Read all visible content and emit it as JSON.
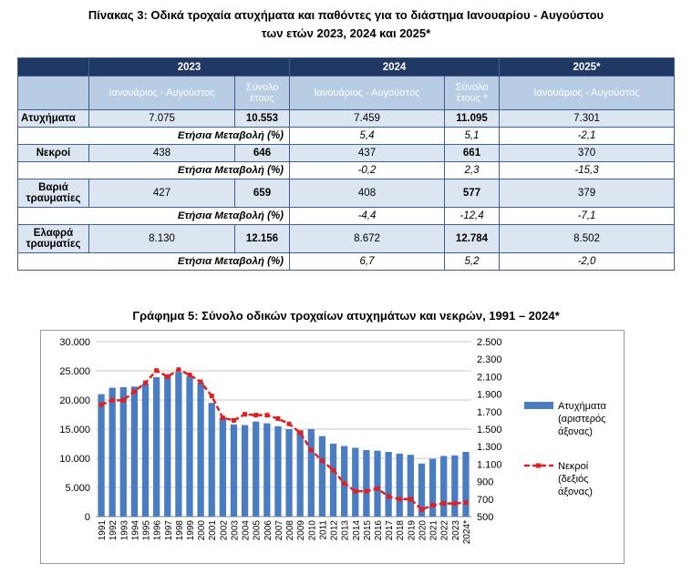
{
  "table_title_line1": "Πίνακας 3: Οδικά τροχαία ατυχήματα και παθόντες για το διάστημα Ιανουαρίου - Αυγούστου",
  "table_title_line2": "των ετών 2023, 2024 και 2025*",
  "table": {
    "years": [
      "2023",
      "2024",
      "2025*"
    ],
    "col_period": "Ιανουάριος -   Αυγούστος",
    "col_total_2023": "Σύνολο έτους",
    "col_total_2024": "Σύνολο έτους *",
    "col_period_2025": "Ιανουάριος -     Αυγούστος",
    "change_label": "Ετήσια Μεταβολή (%)",
    "rows": [
      {
        "label": "Ατυχήματα",
        "v2023": "7.075",
        "t2023": "10.553",
        "v2024": "7.459",
        "t2024": "11.095",
        "v2025": "7.301",
        "c2024": "5,4",
        "ct2024": "5,1",
        "c2025": "-2,1"
      },
      {
        "label": "Νεκροί",
        "v2023": "438",
        "t2023": "646",
        "v2024": "437",
        "t2024": "661",
        "v2025": "370",
        "c2024": "-0,2",
        "ct2024": "2,3",
        "c2025": "-15,3"
      },
      {
        "label": "Βαριά τραυματίες",
        "v2023": "427",
        "t2023": "659",
        "v2024": "408",
        "t2024": "577",
        "v2025": "379",
        "c2024": "-4,4",
        "ct2024": "-12,4",
        "c2025": "-7,1"
      },
      {
        "label": "Ελαφρά τραυματίες",
        "v2023": "8.130",
        "t2023": "12.156",
        "v2024": "8.672",
        "t2024": "12.784",
        "v2025": "8.502",
        "c2024": "6,7",
        "ct2024": "5,2",
        "c2025": "-2,0"
      }
    ]
  },
  "chart_title": "Γράφημα 5: Σύνολο οδικών τροχαίων ατυχημάτων και νεκρών, 1991 – 2024*",
  "chart_data": {
    "type": "bar",
    "categories": [
      "1991",
      "1992",
      "1993",
      "1994",
      "1995",
      "1996",
      "1997",
      "1998",
      "1999",
      "2000",
      "2001",
      "2002",
      "2003",
      "2004",
      "2005",
      "2006",
      "2007",
      "2008",
      "2009",
      "2010",
      "2011",
      "2012",
      "2013",
      "2014",
      "2015",
      "2016",
      "2017",
      "2018",
      "2019",
      "2020",
      "2021",
      "2022",
      "2023",
      "2024*"
    ],
    "series": [
      {
        "name": "Ατυχήματα (αριστερός άξονας)",
        "kind": "bar",
        "axis": "left",
        "color": "#4a7cc2",
        "values": [
          21000,
          22100,
          22200,
          22300,
          22800,
          23900,
          24300,
          24800,
          24000,
          23000,
          19500,
          17000,
          15800,
          15700,
          16300,
          16000,
          15500,
          15000,
          14800,
          15000,
          13800,
          12500,
          12100,
          11800,
          11400,
          11300,
          11100,
          10800,
          10600,
          9100,
          9900,
          10400,
          10500,
          11100
        ]
      },
      {
        "name": "Νεκροί (δεξιός άξονας)",
        "kind": "line",
        "axis": "right",
        "color": "#e02020",
        "values": [
          1780,
          1830,
          1830,
          1930,
          2030,
          2170,
          2100,
          2180,
          2120,
          2040,
          1880,
          1630,
          1600,
          1670,
          1660,
          1660,
          1620,
          1560,
          1460,
          1260,
          1140,
          1030,
          880,
          790,
          790,
          820,
          730,
          700,
          700,
          580,
          630,
          650,
          650,
          660
        ]
      }
    ],
    "y_left": {
      "min": 0,
      "max": 30000,
      "ticks": [
        "0",
        "5.000",
        "10.000",
        "15.000",
        "20.000",
        "25.000",
        "30.000"
      ]
    },
    "y_right": {
      "min": 500,
      "max": 2500,
      "ticks": [
        "500",
        "700",
        "900",
        "1.100",
        "1.300",
        "1.500",
        "1.700",
        "1.900",
        "2.100",
        "2.300",
        "2.500"
      ]
    },
    "legend_position": "right"
  }
}
